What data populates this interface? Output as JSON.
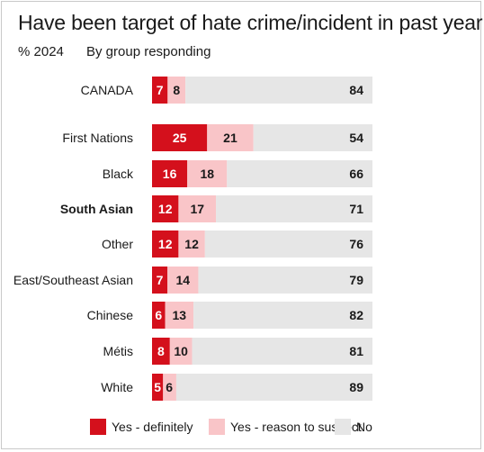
{
  "title": "Have been target of hate crime/incident in past year",
  "subtitle_left": "% 2024",
  "subtitle_right": "By group responding",
  "colors": {
    "definitely": "#d4101c",
    "suspect": "#f9c5c8",
    "no": "#e6e6e6"
  },
  "legend": [
    {
      "key": "definitely",
      "label": "Yes - definitely"
    },
    {
      "key": "suspect",
      "label": "Yes - reason to suspect"
    },
    {
      "key": "no",
      "label": "No"
    }
  ],
  "chart_data": {
    "type": "bar",
    "orientation": "horizontal",
    "stacked": true,
    "categories": [
      "CANADA",
      "First Nations",
      "Black",
      "South Asian",
      "Other",
      "East/Southeast Asian",
      "Chinese",
      "Métis",
      "White"
    ],
    "bold_category": "South Asian",
    "series": [
      {
        "name": "Yes - definitely",
        "values": [
          7,
          25,
          16,
          12,
          12,
          7,
          6,
          8,
          5
        ]
      },
      {
        "name": "Yes - reason to suspect",
        "values": [
          8,
          21,
          18,
          17,
          12,
          14,
          13,
          10,
          6
        ]
      },
      {
        "name": "No",
        "values": [
          84,
          54,
          66,
          71,
          76,
          79,
          82,
          81,
          89
        ]
      }
    ]
  }
}
